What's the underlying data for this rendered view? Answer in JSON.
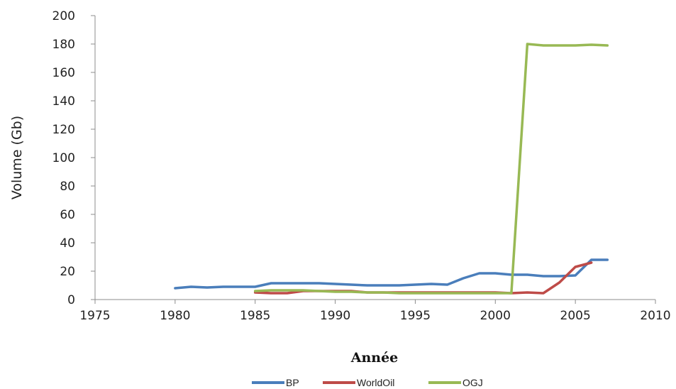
{
  "chart_data": {
    "type": "line",
    "title": "",
    "xlabel": "Année",
    "ylabel": "Volume (Gb)",
    "xlim": [
      1975,
      2010
    ],
    "ylim": [
      0,
      200
    ],
    "xticks": [
      "1975",
      "1980",
      "1985",
      "1990",
      "1995",
      "2000",
      "2005",
      "2010"
    ],
    "yticks": [
      "0",
      "20",
      "40",
      "60",
      "80",
      "100",
      "120",
      "140",
      "160",
      "180",
      "200"
    ],
    "grid": false,
    "legend_position": "bottom",
    "series": [
      {
        "name": "BP",
        "color": "#4a7ebb",
        "x": [
          1980,
          1981,
          1982,
          1983,
          1984,
          1985,
          1986,
          1987,
          1988,
          1989,
          1990,
          1991,
          1992,
          1993,
          1994,
          1995,
          1996,
          1997,
          1998,
          1999,
          2000,
          2001,
          2002,
          2003,
          2004,
          2005,
          2006,
          2007
        ],
        "y": [
          8,
          9,
          8.5,
          9,
          9,
          9,
          11.5,
          11.5,
          11.5,
          11.5,
          11,
          10.5,
          10,
          10,
          10,
          10.5,
          11,
          10.5,
          15,
          18.5,
          18.5,
          17.5,
          17.5,
          16.5,
          16.5,
          17,
          28,
          28
        ]
      },
      {
        "name": "WorldOil",
        "color": "#be4b48",
        "x": [
          1985,
          1986,
          1987,
          1988,
          1989,
          1990,
          1991,
          1992,
          1993,
          1994,
          1995,
          1996,
          1997,
          1998,
          1999,
          2000,
          2001,
          2002,
          2003,
          2004,
          2005,
          2006
        ],
        "y": [
          5,
          4.5,
          4.5,
          6,
          6,
          6,
          6,
          5,
          5,
          5,
          5,
          5,
          5,
          5,
          5,
          5,
          4.5,
          5,
          4.5,
          12,
          23,
          26
        ]
      },
      {
        "name": "OGJ",
        "color": "#98b954",
        "x": [
          1985,
          1986,
          1987,
          1988,
          1989,
          1990,
          1991,
          1992,
          1993,
          1994,
          1995,
          1996,
          1997,
          1998,
          1999,
          2000,
          2001,
          2002,
          2003,
          2004,
          2005,
          2006,
          2007
        ],
        "y": [
          6,
          6.5,
          6.5,
          6.5,
          6,
          5.5,
          5.5,
          5,
          5,
          4.5,
          4.5,
          4.5,
          4.5,
          4.5,
          4.5,
          4.5,
          4.5,
          180,
          179,
          179,
          179,
          179.5,
          179
        ]
      }
    ]
  }
}
